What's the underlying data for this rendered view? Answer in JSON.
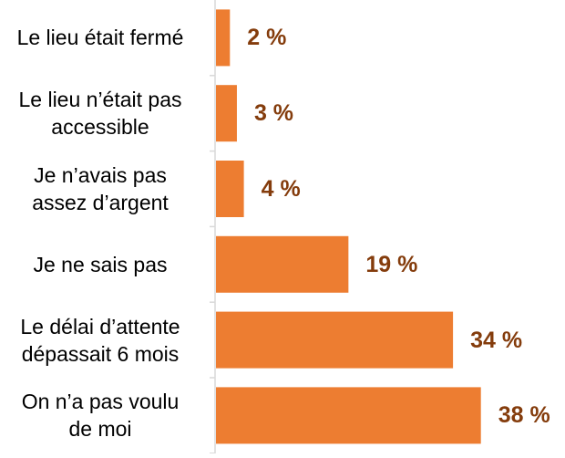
{
  "chart_data": {
    "type": "bar",
    "orientation": "horizontal",
    "categories": [
      "Le lieu était fermé",
      "Le lieu n’était pas\naccessible",
      "Je n’avais pas\nassez d’argent",
      "Je ne sais pas",
      "Le délai d’attente\ndépassait 6 mois",
      "On n’a pas voulu\nde moi"
    ],
    "values": [
      2,
      3,
      4,
      19,
      34,
      38
    ],
    "value_labels": [
      "2 %",
      "3 %",
      "4 %",
      "19 %",
      "34 %",
      "38 %"
    ],
    "bar_color": "#ed7d31",
    "label_color": "#843c0c",
    "axis_color": "#d9d9d9",
    "xlim": [
      0,
      40
    ],
    "grid": false,
    "legend": "none"
  }
}
